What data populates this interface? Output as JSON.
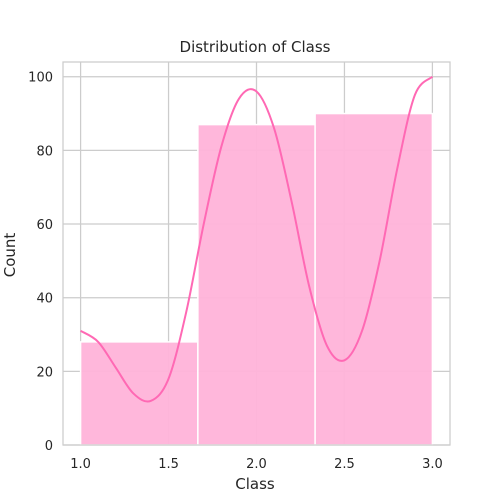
{
  "chart_data": {
    "type": "bar",
    "title": "Distribution of Class",
    "xlabel": "Class",
    "ylabel": "Count",
    "xlim": [
      0.9,
      3.1
    ],
    "ylim": [
      0,
      104
    ],
    "grid": true,
    "x_ticks": [
      1.0,
      1.5,
      2.0,
      2.5,
      3.0
    ],
    "x_tick_labels": [
      "1.0",
      "1.5",
      "2.0",
      "2.5",
      "3.0"
    ],
    "y_ticks": [
      0,
      20,
      40,
      60,
      80,
      100
    ],
    "y_tick_labels": [
      "0",
      "20",
      "40",
      "60",
      "80",
      "100"
    ],
    "bins": [
      {
        "x0": 1.0,
        "x1": 1.6667,
        "count": 28
      },
      {
        "x0": 1.6667,
        "x1": 2.3333,
        "count": 87
      },
      {
        "x0": 2.3333,
        "x1": 3.0,
        "count": 90
      }
    ],
    "kde": {
      "x": [
        1.0,
        1.1,
        1.2,
        1.3,
        1.4,
        1.5,
        1.6,
        1.7,
        1.8,
        1.9,
        2.0,
        2.1,
        2.2,
        2.3,
        2.4,
        2.5,
        2.6,
        2.7,
        2.8,
        2.9,
        3.0
      ],
      "y": [
        31,
        28,
        21,
        14,
        12,
        18,
        36,
        60,
        81,
        94,
        96,
        86,
        66,
        43,
        27,
        23,
        31,
        50,
        75,
        95,
        100
      ]
    },
    "bar_color": "#ffb3d9",
    "kde_color": "#ff69b4",
    "grid_color": "#cccccc"
  }
}
